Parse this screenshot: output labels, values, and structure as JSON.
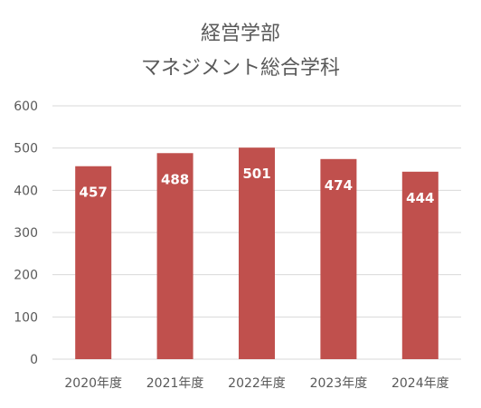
{
  "chart_data": {
    "type": "bar",
    "title": [
      "経営学部",
      "マネジメント総合学科"
    ],
    "categories": [
      "2020年度",
      "2021年度",
      "2022年度",
      "2023年度",
      "2024年度"
    ],
    "values": [
      457,
      488,
      501,
      474,
      444
    ],
    "ylim": [
      0,
      600
    ],
    "yticks": [
      "0",
      "100",
      "200",
      "300",
      "400",
      "500",
      "600"
    ],
    "grid": true,
    "bar_color": "#c0504d",
    "data_labels": [
      "457",
      "488",
      "501",
      "474",
      "444"
    ]
  }
}
